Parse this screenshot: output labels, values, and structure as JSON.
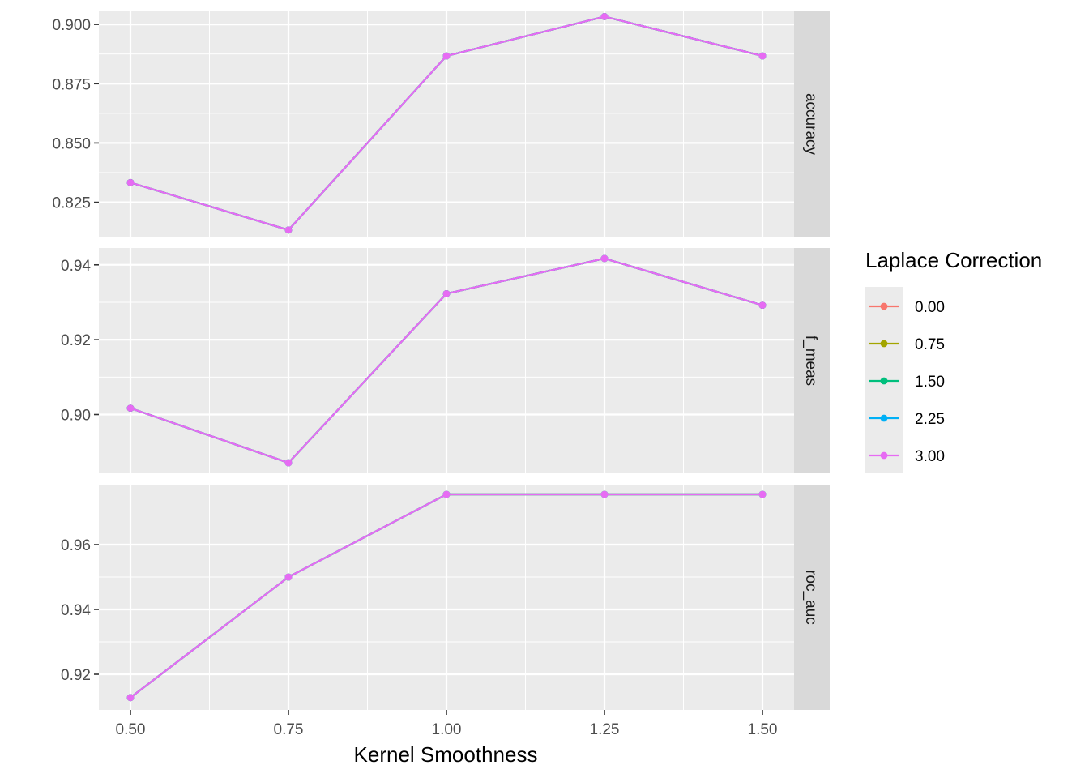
{
  "chart_data": {
    "type": "line",
    "faceted": true,
    "xlabel": "Kernel Smoothness",
    "x": [
      0.5,
      0.75,
      1.0,
      1.25,
      1.5
    ],
    "x_tick_labels": [
      "0.50",
      "0.75",
      "1.00",
      "1.25",
      "1.50"
    ],
    "xlim": [
      0.45,
      1.55
    ],
    "legend": {
      "title": "Laplace Correction",
      "position": "right",
      "entries": [
        {
          "label": "0.00",
          "color": "#F8766D"
        },
        {
          "label": "0.75",
          "color": "#A3A500"
        },
        {
          "label": "1.50",
          "color": "#00BF7D"
        },
        {
          "label": "2.25",
          "color": "#00B0F6"
        },
        {
          "label": "3.00",
          "color": "#E76BF3"
        }
      ]
    },
    "grid": true,
    "panels": [
      {
        "strip": "accuracy",
        "ylim": [
          0.8105,
          0.9055
        ],
        "y_ticks": [
          0.825,
          0.85,
          0.875,
          0.9
        ],
        "y_tick_labels": [
          "0.825",
          "0.850",
          "0.875",
          "0.900"
        ],
        "series": [
          {
            "values": [
              0.8333,
              0.8133,
              0.8867,
              0.9033,
              0.8867
            ]
          },
          {
            "values": [
              0.8333,
              0.8133,
              0.8867,
              0.9033,
              0.8867
            ]
          },
          {
            "values": [
              0.8333,
              0.8133,
              0.8867,
              0.9033,
              0.8867
            ]
          },
          {
            "values": [
              0.8333,
              0.8133,
              0.8867,
              0.9033,
              0.8867
            ]
          },
          {
            "values": [
              0.8333,
              0.8133,
              0.8867,
              0.9033,
              0.8867
            ]
          }
        ]
      },
      {
        "strip": "f_meas",
        "ylim": [
          0.8843,
          0.9445
        ],
        "y_ticks": [
          0.9,
          0.92,
          0.94
        ],
        "y_tick_labels": [
          "0.90",
          "0.92",
          "0.94"
        ],
        "series": [
          {
            "values": [
              0.9017,
              0.8871,
              0.9323,
              0.9417,
              0.9292
            ]
          },
          {
            "values": [
              0.9017,
              0.8871,
              0.9323,
              0.9417,
              0.9292
            ]
          },
          {
            "values": [
              0.9017,
              0.8871,
              0.9323,
              0.9417,
              0.9292
            ]
          },
          {
            "values": [
              0.9017,
              0.8871,
              0.9323,
              0.9417,
              0.9292
            ]
          },
          {
            "values": [
              0.9017,
              0.8871,
              0.9323,
              0.9417,
              0.9292
            ]
          }
        ]
      },
      {
        "strip": "roc_auc",
        "ylim": [
          0.909,
          0.9785
        ],
        "y_ticks": [
          0.92,
          0.94,
          0.96
        ],
        "y_tick_labels": [
          "0.92",
          "0.94",
          "0.96"
        ],
        "series": [
          {
            "values": [
              0.9128,
              0.95,
              0.9755,
              0.9755,
              0.9755
            ]
          },
          {
            "values": [
              0.9128,
              0.95,
              0.9755,
              0.9755,
              0.9755
            ]
          },
          {
            "values": [
              0.9128,
              0.95,
              0.9755,
              0.9755,
              0.9755
            ]
          },
          {
            "values": [
              0.9128,
              0.95,
              0.9755,
              0.9755,
              0.9755
            ]
          },
          {
            "values": [
              0.9128,
              0.95,
              0.9755,
              0.9755,
              0.9755
            ]
          }
        ]
      }
    ]
  }
}
